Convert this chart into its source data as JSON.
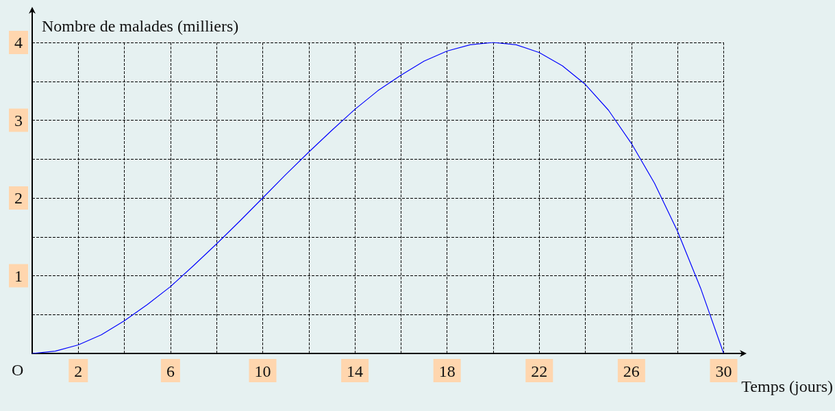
{
  "chart_data": {
    "type": "line",
    "xlabel": "Temps (jours)",
    "ylabel": "Nombre de malades (milliers)",
    "x": [
      0,
      1,
      2,
      3,
      4,
      5,
      6,
      7,
      8,
      9,
      10,
      11,
      12,
      13,
      14,
      15,
      16,
      17,
      18,
      19,
      20,
      21,
      22,
      23,
      24,
      25,
      26,
      27,
      28,
      29,
      30
    ],
    "series": [
      {
        "color": "#0000ff",
        "values": [
          0,
          0.03,
          0.11,
          0.24,
          0.42,
          0.63,
          0.86,
          1.13,
          1.41,
          1.7,
          2,
          2.3,
          2.59,
          2.87,
          3.14,
          3.38,
          3.58,
          3.76,
          3.89,
          3.97,
          4,
          3.97,
          3.87,
          3.7,
          3.46,
          3.13,
          2.7,
          2.19,
          1.57,
          0.84,
          0
        ]
      }
    ],
    "xlim": [
      0,
      30
    ],
    "ylim": [
      0,
      4
    ],
    "xticks": [
      {
        "value": 0,
        "label": null
      },
      2,
      {
        "value": 4,
        "label": null
      },
      6,
      {
        "value": 8,
        "label": null
      },
      10,
      {
        "value": 12,
        "label": null
      },
      14,
      {
        "value": 16,
        "label": null
      },
      18,
      {
        "value": 20,
        "label": null
      },
      22,
      {
        "value": 24,
        "label": null
      },
      26,
      {
        "value": 28,
        "label": null
      },
      30
    ],
    "yticks": [
      {
        "value": 0,
        "label": null
      },
      {
        "value": 0.5,
        "label": null
      },
      1,
      {
        "value": 1.5,
        "label": null
      },
      2,
      {
        "value": 2.5,
        "label": null
      },
      3,
      {
        "value": 3.5,
        "label": null
      },
      4
    ],
    "grid": true,
    "marker": "none",
    "line_style": "solid",
    "annotations": [
      {
        "text": "O",
        "x": 0,
        "y": 0
      }
    ]
  }
}
